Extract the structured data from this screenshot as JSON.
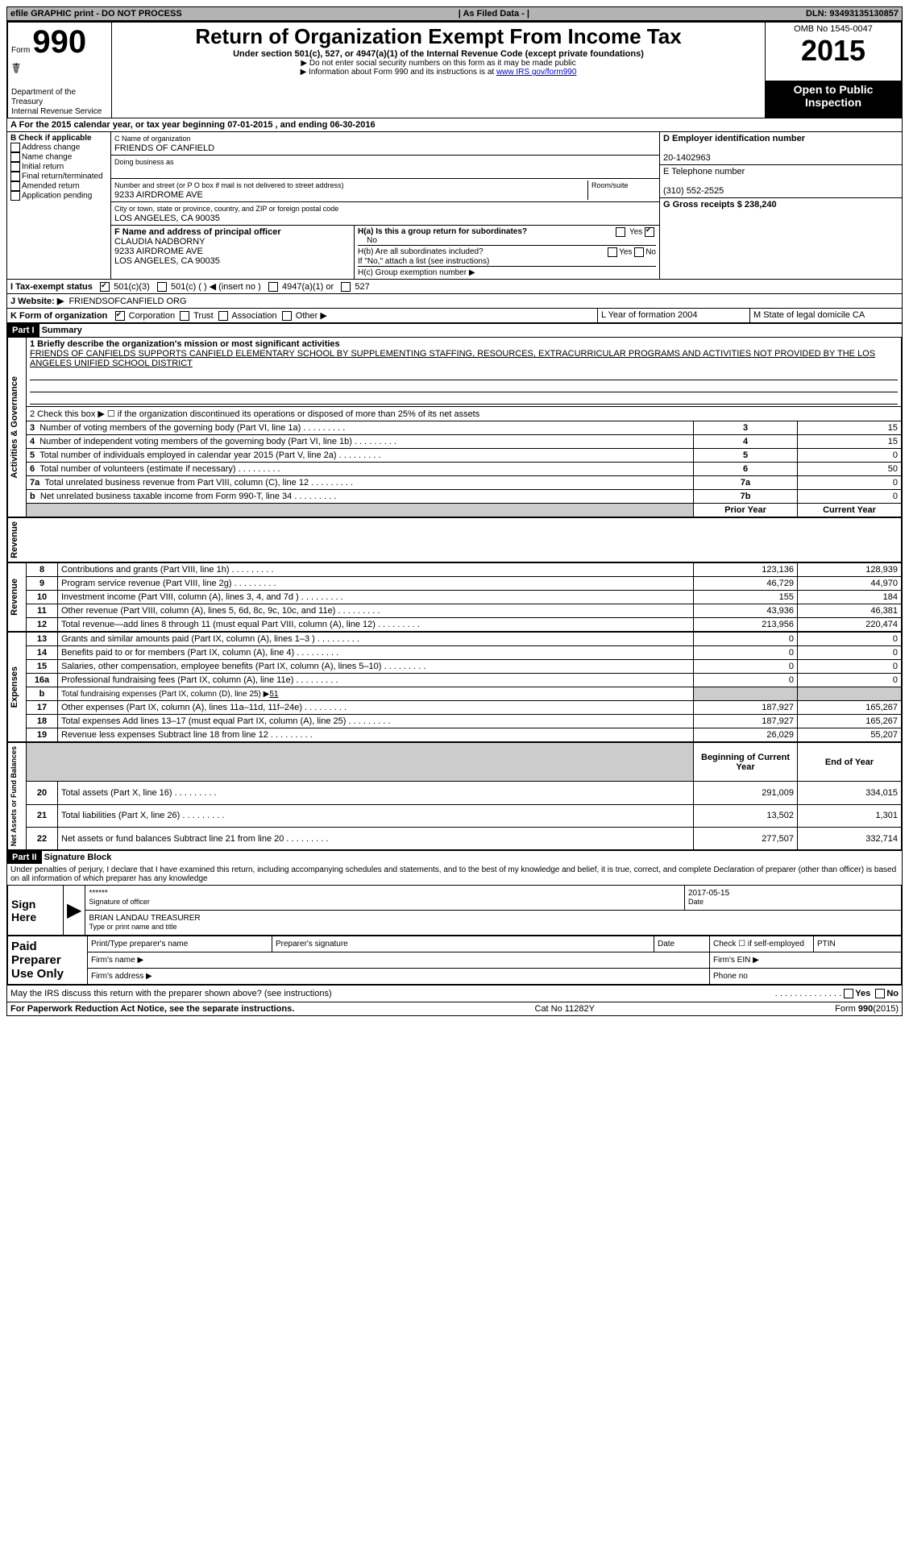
{
  "topbar": {
    "left": "efile GRAPHIC print - DO NOT PROCESS",
    "mid": "| As Filed Data - |",
    "right": "DLN: 93493135130857"
  },
  "header": {
    "form_label": "Form",
    "form_number": "990",
    "dept1": "Department of the",
    "dept2": "Treasury",
    "dept3": "Internal Revenue Service",
    "title": "Return of Organization Exempt From Income Tax",
    "subtitle": "Under section 501(c), 527, or 4947(a)(1) of the Internal Revenue Code (except private foundations)",
    "note1": "▶ Do not enter social security numbers on this form as it may be made public",
    "note2": "▶ Information about Form 990 and its instructions is at ",
    "note2_link": "www IRS gov/form990",
    "omb": "OMB No 1545-0047",
    "year": "2015",
    "open": "Open to Public Inspection"
  },
  "rowA": "A  For the 2015 calendar year, or tax year beginning 07-01-2015    , and ending 06-30-2016",
  "B": {
    "title": "B  Check if applicable",
    "items": [
      "Address change",
      "Name change",
      "Initial return",
      "Final return/terminated",
      "Amended return",
      "Application pending"
    ]
  },
  "C": {
    "name_label": "C  Name of organization",
    "name": "FRIENDS OF CANFIELD",
    "dba_label": "Doing business as",
    "dba": "",
    "street_label": "Number and street (or P O box if mail is not delivered to street address)",
    "room_label": "Room/suite",
    "street": "9233 AIRDROME AVE",
    "city_label": "City or town, state or province, country, and ZIP or foreign postal code",
    "city": "LOS ANGELES, CA  90035",
    "F_label": "F  Name and address of principal officer",
    "F_name": "CLAUDIA NADBORNY",
    "F_addr1": "9233 AIRDROME AVE",
    "F_addr2": "LOS ANGELES, CA  90035"
  },
  "D": {
    "label": "D Employer identification number",
    "value": "20-1402963",
    "E_label": "E Telephone number",
    "E_value": "(310) 552-2525",
    "G_label": "G Gross receipts $ 238,240"
  },
  "H": {
    "a_label": "H(a)  Is this a group return for subordinates?",
    "a_no": "No",
    "yes": "Yes",
    "no": "No",
    "b_label": "H(b)  Are all subordinates included?",
    "b_note": "If \"No,\" attach a list  (see instructions)",
    "c_label": "H(c)  Group exemption number ▶"
  },
  "I": {
    "label": "I    Tax-exempt status",
    "opt1": "501(c)(3)",
    "opt2": "501(c) (    ) ◀ (insert no )",
    "opt3": "4947(a)(1) or",
    "opt4": "527"
  },
  "J": {
    "label": "J   Website: ▶",
    "value": "FRIENDSOFCANFIELD ORG"
  },
  "K": {
    "label": "K Form of organization",
    "opts": [
      "Corporation",
      "Trust",
      "Association",
      "Other ▶"
    ],
    "L": "L Year of formation  2004",
    "M": "M State of legal domicile  CA"
  },
  "part1": {
    "header": "Part I",
    "title": "Summary",
    "side_ag": "Activities & Governance",
    "line1_label": "1 Briefly describe the organization's mission or most significant activities",
    "line1_text": "FRIENDS OF CANFIELDS SUPPORTS CANFIELD ELEMENTARY SCHOOL BY SUPPLEMENTING STAFFING, RESOURCES, EXTRACURRICULAR PROGRAMS AND ACTIVITIES NOT PROVIDED BY THE LOS ANGELES UNIFIED SCHOOL DISTRICT",
    "line2": "2  Check this box ▶ ☐ if the organization discontinued its operations or disposed of more than 25% of its net assets",
    "rows_ag": [
      {
        "n": "3",
        "t": "Number of voting members of the governing body (Part VI, line 1a)",
        "k": "3",
        "v": "15"
      },
      {
        "n": "4",
        "t": "Number of independent voting members of the governing body (Part VI, line 1b)",
        "k": "4",
        "v": "15"
      },
      {
        "n": "5",
        "t": "Total number of individuals employed in calendar year 2015 (Part V, line 2a)",
        "k": "5",
        "v": "0"
      },
      {
        "n": "6",
        "t": "Total number of volunteers (estimate if necessary)",
        "k": "6",
        "v": "50"
      },
      {
        "n": "7a",
        "t": "Total unrelated business revenue from Part VIII, column (C), line 12",
        "k": "7a",
        "v": "0"
      },
      {
        "n": "b",
        "t": "Net unrelated business taxable income from Form 990-T, line 34",
        "k": "7b",
        "v": "0"
      }
    ],
    "col_prior": "Prior Year",
    "col_current": "Current Year",
    "side_rev": "Revenue",
    "rows_rev": [
      {
        "n": "8",
        "t": "Contributions and grants (Part VIII, line 1h)",
        "p": "123,136",
        "c": "128,939"
      },
      {
        "n": "9",
        "t": "Program service revenue (Part VIII, line 2g)",
        "p": "46,729",
        "c": "44,970"
      },
      {
        "n": "10",
        "t": "Investment income (Part VIII, column (A), lines 3, 4, and 7d )",
        "p": "155",
        "c": "184"
      },
      {
        "n": "11",
        "t": "Other revenue (Part VIII, column (A), lines 5, 6d, 8c, 9c, 10c, and 11e)",
        "p": "43,936",
        "c": "46,381"
      },
      {
        "n": "12",
        "t": "Total revenue—add lines 8 through 11 (must equal Part VIII, column (A), line 12)",
        "p": "213,956",
        "c": "220,474"
      }
    ],
    "side_exp": "Expenses",
    "rows_exp": [
      {
        "n": "13",
        "t": "Grants and similar amounts paid (Part IX, column (A), lines 1–3 )",
        "p": "0",
        "c": "0"
      },
      {
        "n": "14",
        "t": "Benefits paid to or for members (Part IX, column (A), line 4)",
        "p": "0",
        "c": "0"
      },
      {
        "n": "15",
        "t": "Salaries, other compensation, employee benefits (Part IX, column (A), lines 5–10)",
        "p": "0",
        "c": "0"
      },
      {
        "n": "16a",
        "t": "Professional fundraising fees (Part IX, column (A), line 11e)",
        "p": "0",
        "c": "0"
      }
    ],
    "row_b": {
      "n": "b",
      "t": "Total fundraising expenses (Part IX, column (D), line 25) ▶",
      "v": "51"
    },
    "rows_exp2": [
      {
        "n": "17",
        "t": "Other expenses (Part IX, column (A), lines 11a–11d, 11f–24e)",
        "p": "187,927",
        "c": "165,267"
      },
      {
        "n": "18",
        "t": "Total expenses  Add lines 13–17 (must equal Part IX, column (A), line 25)",
        "p": "187,927",
        "c": "165,267"
      },
      {
        "n": "19",
        "t": "Revenue less expenses  Subtract line 18 from line 12",
        "p": "26,029",
        "c": "55,207"
      }
    ],
    "side_na": "Net Assets or Fund Balances",
    "col_begin": "Beginning of Current Year",
    "col_end": "End of Year",
    "rows_na": [
      {
        "n": "20",
        "t": "Total assets (Part X, line 16)",
        "p": "291,009",
        "c": "334,015"
      },
      {
        "n": "21",
        "t": "Total liabilities (Part X, line 26)",
        "p": "13,502",
        "c": "1,301"
      },
      {
        "n": "22",
        "t": "Net assets or fund balances  Subtract line 21 from line 20",
        "p": "277,507",
        "c": "332,714"
      }
    ]
  },
  "part2": {
    "header": "Part II",
    "title": "Signature Block",
    "decl": "Under penalties of perjury, I declare that I have examined this return, including accompanying schedules and statements, and to the best of my knowledge and belief, it is true, correct, and complete  Declaration of preparer (other than officer) is based on all information of which preparer has any knowledge",
    "sign_here": "Sign Here",
    "sig_stars": "******",
    "sig_of_officer": "Signature of officer",
    "date": "2017-05-15",
    "date_label": "Date",
    "officer_name": "BRIAN LANDAU TREASURER",
    "type_print": "Type or print name and title",
    "paid": "Paid Preparer Use Only",
    "prep_name": "Print/Type preparer's name",
    "prep_sig": "Preparer's signature",
    "check_self": "Check ☐ if self-employed",
    "ptin": "PTIN",
    "firm_name": "Firm's name    ▶",
    "firm_ein": "Firm's EIN ▶",
    "firm_addr": "Firm's address ▶",
    "phone": "Phone no",
    "may_irs": "May the IRS discuss this return with the preparer shown above? (see instructions)",
    "yes": "Yes",
    "no": "No"
  },
  "footer": {
    "left": "For Paperwork Reduction Act Notice, see the separate instructions.",
    "mid": "Cat No  11282Y",
    "right": "Form 990 (2015)"
  }
}
